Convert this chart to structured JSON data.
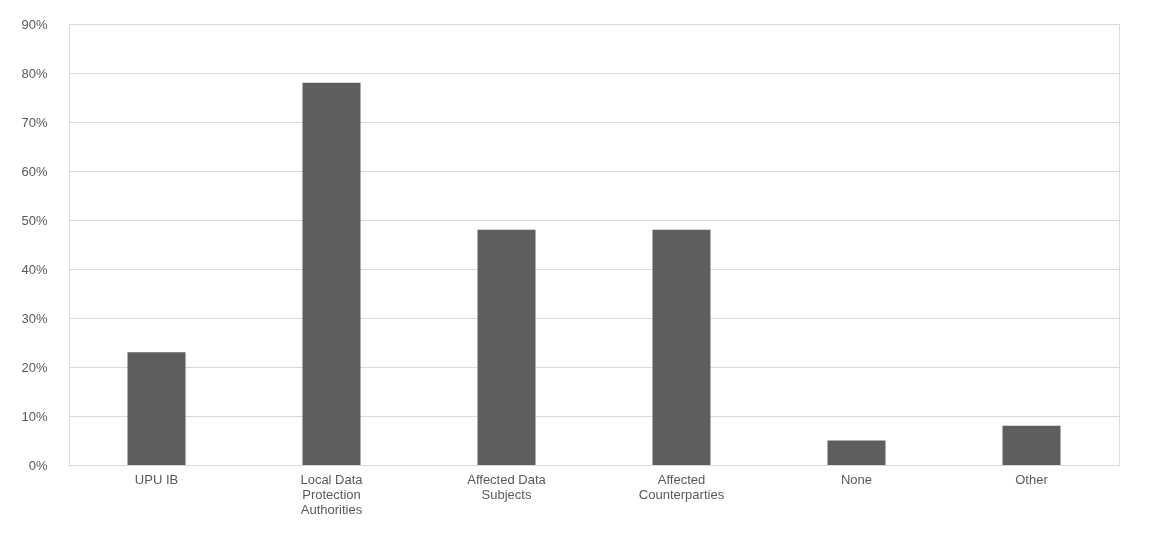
{
  "chart_data": {
    "type": "bar",
    "categories": [
      "UPU IB",
      "Local Data Protection Authorities",
      "Affected Data Subjects",
      "Affected Counterparties",
      "None",
      "Other"
    ],
    "values": [
      23,
      78,
      48,
      48,
      5,
      8
    ],
    "color": "#5e5e5e",
    "ylim": [
      0,
      90
    ],
    "yticks": [
      {
        "value": 0,
        "label": "0%"
      },
      {
        "value": 10,
        "label": "10%"
      },
      {
        "value": 20,
        "label": "20%"
      },
      {
        "value": 30,
        "label": "30%"
      },
      {
        "value": 40,
        "label": "40%"
      },
      {
        "value": 50,
        "label": "50%"
      },
      {
        "value": 60,
        "label": "60%"
      },
      {
        "value": 70,
        "label": "70%"
      },
      {
        "value": 80,
        "label": "80%"
      },
      {
        "value": 90,
        "label": "90%"
      }
    ],
    "grid": "y"
  }
}
